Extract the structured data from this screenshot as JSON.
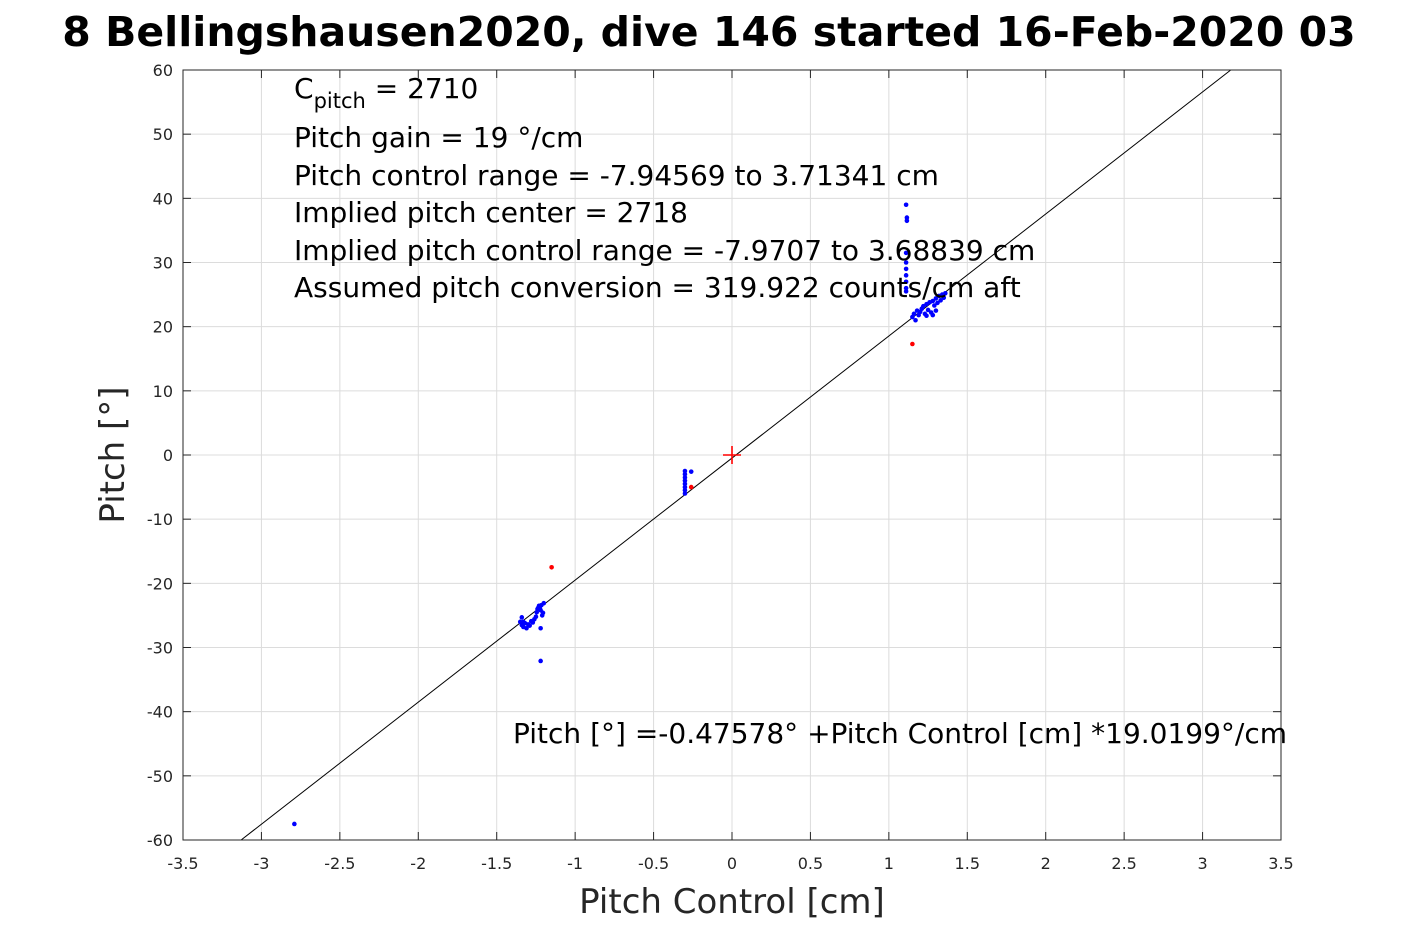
{
  "chart_data": {
    "type": "scatter",
    "title": "8 Bellingshausen2020, dive 146 started 16-Feb-2020 03",
    "xlabel": "Pitch Control [cm]",
    "ylabel": "Pitch [°]",
    "xlim": [
      -3.5,
      3.5
    ],
    "ylim": [
      -60,
      60
    ],
    "xticks": [
      -3.5,
      -3,
      -2.5,
      -2,
      -1.5,
      -1,
      -0.5,
      0,
      0.5,
      1,
      1.5,
      2,
      2.5,
      3,
      3.5
    ],
    "yticks": [
      -60,
      -50,
      -40,
      -30,
      -20,
      -10,
      0,
      10,
      20,
      30,
      40,
      50,
      60
    ],
    "xtick_labels": [
      "-3.5",
      "-3",
      "-2.5",
      "-2",
      "-1.5",
      "-1",
      "-0.5",
      "0",
      "0.5",
      "1",
      "1.5",
      "2",
      "2.5",
      "3",
      "3.5"
    ],
    "ytick_labels": [
      "-60",
      "-50",
      "-40",
      "-30",
      "-20",
      "-10",
      "0",
      "10",
      "20",
      "30",
      "40",
      "50",
      "60"
    ],
    "grid": true,
    "annotations": {
      "c_pitch_prefix": "C",
      "c_pitch_sub": "pitch",
      "c_pitch_value": " = 2710",
      "lines": [
        "Pitch gain = 19 °/cm",
        "Pitch control range = -7.94569 to 3.71341 cm",
        "Implied pitch center = 2718",
        "Implied pitch control range = -7.9707 to 3.68839 cm",
        "Assumed pitch conversion = 319.922 counts/cm aft"
      ],
      "fit_equation": "Pitch [°] =-0.47578° +Pitch Control [cm] *19.0199°/cm"
    },
    "fit_line": {
      "intercept": -0.47578,
      "slope": 19.0199,
      "color": "#000000"
    },
    "center_marker": {
      "x": 0,
      "y": 0,
      "color": "#ff0000"
    },
    "series": [
      {
        "color": "#0000ff",
        "points": [
          [
            -1.35,
            -26.0
          ],
          [
            -1.34,
            -26.5
          ],
          [
            -1.33,
            -26.8
          ],
          [
            -1.32,
            -26.2
          ],
          [
            -1.31,
            -27.0
          ],
          [
            -1.3,
            -26.4
          ],
          [
            -1.29,
            -26.6
          ],
          [
            -1.28,
            -25.9
          ],
          [
            -1.27,
            -26.1
          ],
          [
            -1.26,
            -25.6
          ],
          [
            -1.25,
            -25.2
          ],
          [
            -1.245,
            -24.5
          ],
          [
            -1.24,
            -24.0
          ],
          [
            -1.235,
            -23.8
          ],
          [
            -1.23,
            -23.5
          ],
          [
            -1.225,
            -23.9
          ],
          [
            -1.22,
            -24.2
          ],
          [
            -1.215,
            -23.4
          ],
          [
            -1.21,
            -25.0
          ],
          [
            -1.205,
            -24.6
          ],
          [
            -1.2,
            -23.1
          ],
          [
            -1.34,
            -25.3
          ],
          [
            -1.33,
            -26.0
          ],
          [
            -1.22,
            -27.0
          ],
          [
            -1.22,
            -32.1
          ],
          [
            -2.79,
            -57.5
          ],
          [
            -0.3,
            -2.5
          ],
          [
            -0.3,
            -3.0
          ],
          [
            -0.3,
            -3.5
          ],
          [
            -0.3,
            -4.0
          ],
          [
            -0.3,
            -4.5
          ],
          [
            -0.3,
            -5.0
          ],
          [
            -0.3,
            -5.5
          ],
          [
            -0.3,
            -6.0
          ],
          [
            -0.26,
            -2.6
          ],
          [
            1.11,
            39.0
          ],
          [
            1.115,
            37.0
          ],
          [
            1.115,
            36.5
          ],
          [
            1.11,
            30.0
          ],
          [
            1.11,
            29.0
          ],
          [
            1.11,
            28.0
          ],
          [
            1.11,
            27.0
          ],
          [
            1.11,
            26.0
          ],
          [
            1.11,
            25.5
          ],
          [
            1.11,
            31.5
          ],
          [
            1.15,
            21.5
          ],
          [
            1.16,
            22.0
          ],
          [
            1.17,
            21.0
          ],
          [
            1.18,
            22.5
          ],
          [
            1.19,
            21.8
          ],
          [
            1.2,
            22.3
          ],
          [
            1.21,
            22.8
          ],
          [
            1.22,
            23.2
          ],
          [
            1.23,
            22.0
          ],
          [
            1.24,
            23.5
          ],
          [
            1.25,
            22.6
          ],
          [
            1.26,
            23.8
          ],
          [
            1.27,
            22.2
          ],
          [
            1.28,
            24.0
          ],
          [
            1.29,
            23.3
          ],
          [
            1.3,
            24.4
          ],
          [
            1.31,
            23.7
          ],
          [
            1.32,
            24.8
          ],
          [
            1.33,
            24.1
          ],
          [
            1.34,
            25.0
          ],
          [
            1.35,
            24.5
          ],
          [
            1.36,
            25.2
          ],
          [
            1.28,
            21.8
          ],
          [
            1.3,
            22.5
          ],
          [
            1.24,
            21.7
          ]
        ]
      },
      {
        "color": "#ff0000",
        "points": [
          [
            -1.15,
            -17.5
          ],
          [
            -0.26,
            -5.0
          ],
          [
            1.15,
            17.3
          ]
        ]
      }
    ]
  }
}
